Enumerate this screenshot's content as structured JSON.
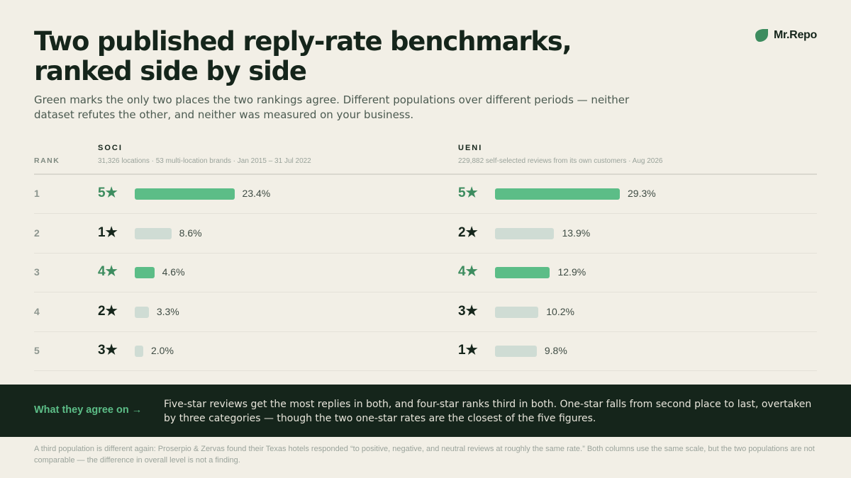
{
  "brand": {
    "name": "Mr.Repo",
    "icon": "leaf-icon",
    "color": "#3d8c5f"
  },
  "title": "Two published reply-rate benchmarks, ranked side by side",
  "subtitle": "Green marks the only two places the two rankings agree. Different populations over different periods — neither dataset refutes the other, and neither was measured on your business.",
  "colors": {
    "match": "#5cbd87",
    "other": "#cfdcd4",
    "match_text": "#3d8c5f"
  },
  "chart_data": {
    "type": "bar",
    "orientation": "horizontal",
    "rank_header": "RANK",
    "ranks": [
      "1",
      "2",
      "3",
      "4",
      "5"
    ],
    "value_max": 29.3,
    "grid": false,
    "columns": [
      {
        "name": "SOCI",
        "description": "31,326 locations · 53 multi-location brands · Jan 2015 – 31 Jul 2022",
        "rows": [
          {
            "label": "5★",
            "value": 23.4,
            "value_label": "23.4%",
            "match": true
          },
          {
            "label": "1★",
            "value": 8.6,
            "value_label": "8.6%",
            "match": false
          },
          {
            "label": "4★",
            "value": 4.6,
            "value_label": "4.6%",
            "match": true
          },
          {
            "label": "2★",
            "value": 3.3,
            "value_label": "3.3%",
            "match": false
          },
          {
            "label": "3★",
            "value": 2.0,
            "value_label": "2.0%",
            "match": false
          }
        ]
      },
      {
        "name": "UENI",
        "description": "229,882 self-selected reviews from its own customers · Aug 2026",
        "rows": [
          {
            "label": "5★",
            "value": 29.3,
            "value_label": "29.3%",
            "match": true
          },
          {
            "label": "2★",
            "value": 13.9,
            "value_label": "13.9%",
            "match": false
          },
          {
            "label": "4★",
            "value": 12.9,
            "value_label": "12.9%",
            "match": true
          },
          {
            "label": "3★",
            "value": 10.2,
            "value_label": "10.2%",
            "match": false
          },
          {
            "label": "1★",
            "value": 9.8,
            "value_label": "9.8%",
            "match": false
          }
        ]
      }
    ]
  },
  "agreement": {
    "label": "What they agree on →",
    "text": "Five-star reviews get the most replies in both, and four-star ranks third in both. One-star falls from second place to last, overtaken by three categories — though the two one-star rates are the closest of the five figures."
  },
  "footnote": "A third population is different again: Proserpio & Zervas found their Texas hotels responded “to positive, negative, and neutral reviews at roughly the same rate.” Both columns use the same scale, but the two populations are not comparable — the difference in overall level is not a finding."
}
